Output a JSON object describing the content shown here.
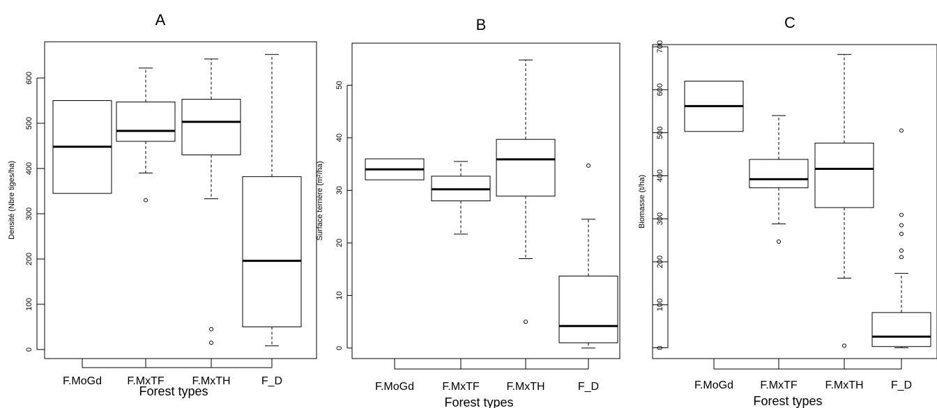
{
  "chart_data": [
    {
      "type": "boxplot",
      "panel_label": "A",
      "ylabel": "Densité (Nbre tiges/ha)",
      "xlabel": "Forest types",
      "yticks": [
        0,
        100,
        200,
        300,
        400,
        500,
        600
      ],
      "ylim": [
        -20,
        680
      ],
      "categories": [
        "F.MoGd",
        "F.MxTF",
        "F.MxTH",
        "F_D"
      ],
      "boxes": [
        {
          "category": "F.MoGd",
          "whisker_low": 345,
          "q1": 345,
          "median": 448,
          "q3": 550,
          "whisker_high": 550,
          "outliers": []
        },
        {
          "category": "F.MxTF",
          "whisker_low": 390,
          "q1": 460,
          "median": 483,
          "q3": 547,
          "whisker_high": 622,
          "outliers": [
            330
          ]
        },
        {
          "category": "F.MxTH",
          "whisker_low": 333,
          "q1": 430,
          "median": 503,
          "q3": 553,
          "whisker_high": 642,
          "outliers": [
            45,
            15
          ]
        },
        {
          "category": "F_D",
          "whisker_low": 8,
          "q1": 50,
          "median": 196,
          "q3": 382,
          "whisker_high": 652,
          "outliers": []
        }
      ]
    },
    {
      "type": "boxplot",
      "panel_label": "B",
      "ylabel": "Surface terrière (m²/ha)",
      "xlabel": "Forest types",
      "yticks": [
        0,
        10,
        20,
        30,
        40,
        50
      ],
      "ylim": [
        -2,
        58
      ],
      "categories": [
        "F.MoGd",
        "F.MxTF",
        "F.MxTH",
        "F_D"
      ],
      "boxes": [
        {
          "category": "F.MoGd",
          "whisker_low": 32,
          "q1": 32,
          "median": 34,
          "q3": 36,
          "whisker_high": 36,
          "outliers": []
        },
        {
          "category": "F.MxTF",
          "whisker_low": 21.7,
          "q1": 28,
          "median": 30.2,
          "q3": 32.7,
          "whisker_high": 35.5,
          "outliers": []
        },
        {
          "category": "F.MxTH",
          "whisker_low": 17,
          "q1": 28.9,
          "median": 35.9,
          "q3": 39.7,
          "whisker_high": 54.8,
          "outliers": [
            5
          ]
        },
        {
          "category": "F_D",
          "whisker_low": 0,
          "q1": 1,
          "median": 4.2,
          "q3": 13.7,
          "whisker_high": 24.5,
          "outliers": [
            34.7
          ]
        }
      ]
    },
    {
      "type": "boxplot",
      "panel_label": "C",
      "ylabel": "Biomasse (t/ha)",
      "xlabel": "Forest types",
      "yticks": [
        0,
        100,
        200,
        300,
        400,
        500,
        600,
        700
      ],
      "ylim": [
        -25,
        705
      ],
      "categories": [
        "F.MoGd",
        "F.MxTF",
        "F.MxTH",
        "F_D"
      ],
      "boxes": [
        {
          "category": "F.MoGd",
          "whisker_low": 503,
          "q1": 503,
          "median": 562,
          "q3": 620,
          "whisker_high": 620,
          "outliers": []
        },
        {
          "category": "F.MxTF",
          "whisker_low": 288,
          "q1": 372,
          "median": 392,
          "q3": 438,
          "whisker_high": 540,
          "outliers": [
            247
          ]
        },
        {
          "category": "F.MxTH",
          "whisker_low": 162,
          "q1": 326,
          "median": 416,
          "q3": 476,
          "whisker_high": 682,
          "outliers": [
            5
          ]
        },
        {
          "category": "F_D",
          "whisker_low": 0,
          "q1": 3,
          "median": 26,
          "q3": 82,
          "whisker_high": 173,
          "outliers": [
            211,
            226,
            265,
            285,
            309,
            505
          ]
        }
      ]
    }
  ]
}
